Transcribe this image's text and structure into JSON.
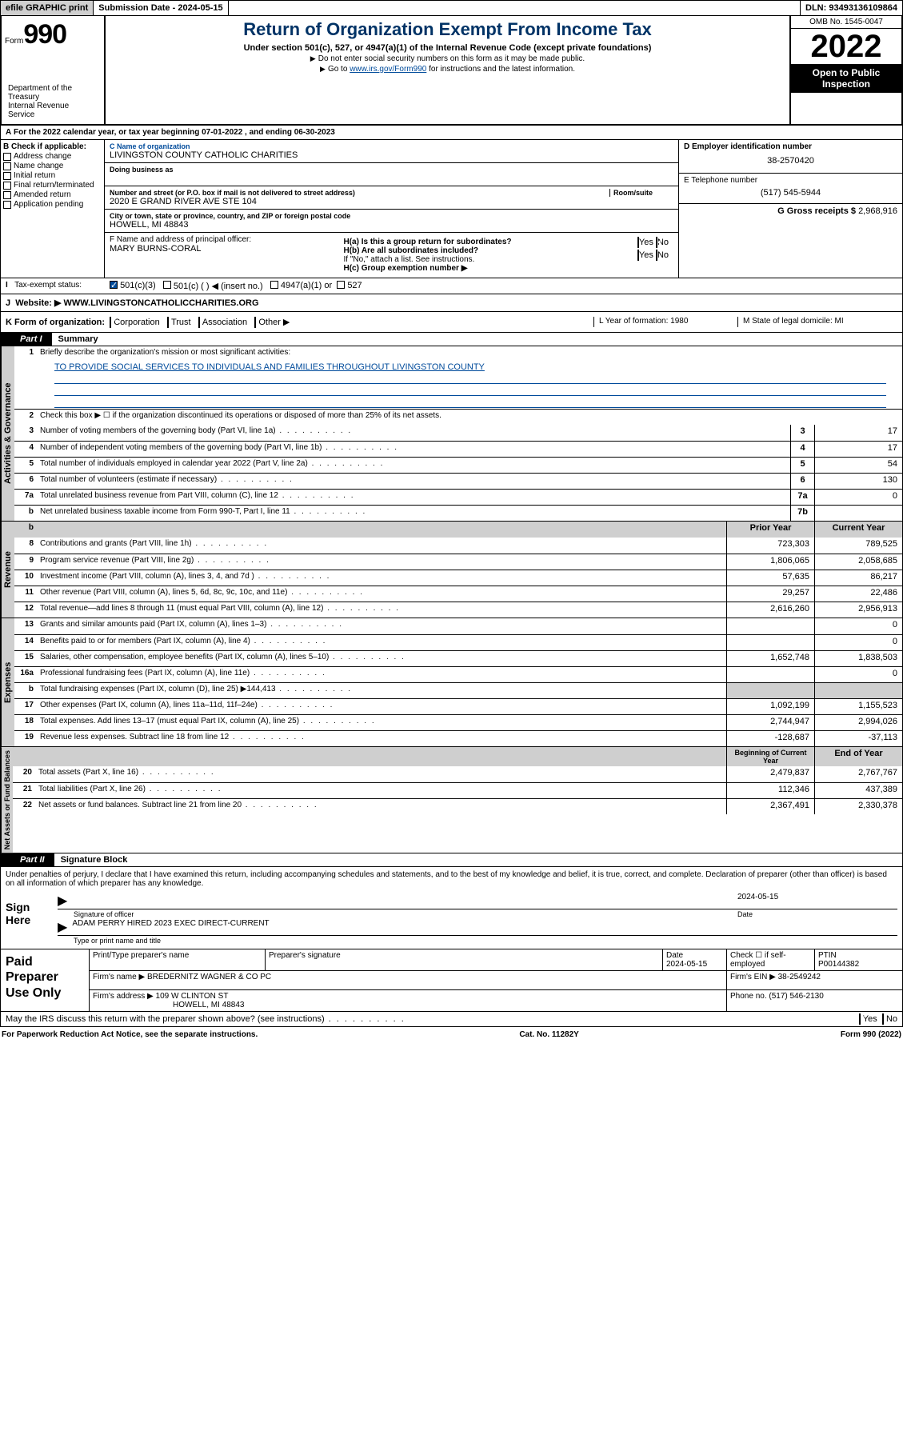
{
  "topbar": {
    "efile": "efile GRAPHIC print",
    "submission_label": "Submission Date - ",
    "submission_date": "2024-05-15",
    "dln_label": "DLN: ",
    "dln": "93493136109864"
  },
  "header": {
    "form_prefix": "Form",
    "form_number": "990",
    "title": "Return of Organization Exempt From Income Tax",
    "subtitle": "Under section 501(c), 527, or 4947(a)(1) of the Internal Revenue Code (except private foundations)",
    "instr1": "Do not enter social security numbers on this form as it may be made public.",
    "instr2_pre": "Go to ",
    "instr2_link": "www.irs.gov/Form990",
    "instr2_post": " for instructions and the latest information.",
    "omb": "OMB No. 1545-0047",
    "year": "2022",
    "open_public": "Open to Public Inspection",
    "dept": "Department of the Treasury",
    "irs": "Internal Revenue Service"
  },
  "section_a": {
    "line": "For the 2022 calendar year, or tax year beginning 07-01-2022    , and ending 06-30-2023",
    "b_label": "B Check if applicable:",
    "b_opts": [
      "Address change",
      "Name change",
      "Initial return",
      "Final return/terminated",
      "Amended return",
      "Application pending"
    ],
    "c_name_label": "C Name of organization",
    "c_name": "LIVINGSTON COUNTY CATHOLIC CHARITIES",
    "dba_label": "Doing business as",
    "street_label": "Number and street (or P.O. box if mail is not delivered to street address)",
    "room_label": "Room/suite",
    "street": "2020 E GRAND RIVER AVE STE 104",
    "city_label": "City or town, state or province, country, and ZIP or foreign postal code",
    "city": "HOWELL, MI  48843",
    "f_label": "F Name and address of principal officer:",
    "f_name": "MARY BURNS-CORAL",
    "d_label": "D Employer identification number",
    "d_ein": "38-2570420",
    "e_label": "E Telephone number",
    "e_phone": "(517) 545-5944",
    "g_label": "G Gross receipts $ ",
    "g_amount": "2,968,916",
    "ha": "H(a)  Is this a group return for subordinates?",
    "hb": "H(b)  Are all subordinates included?",
    "hb_note": "If \"No,\" attach a list. See instructions.",
    "hc": "H(c)  Group exemption number ▶",
    "yes": "Yes",
    "no": "No"
  },
  "tax_exempt": {
    "label": "Tax-exempt status:",
    "opt1": "501(c)(3)",
    "opt2": "501(c) (  ) ◀ (insert no.)",
    "opt3": "4947(a)(1) or",
    "opt4": "527"
  },
  "website": {
    "label": "Website: ▶",
    "url": "WWW.LIVINGSTONCATHOLICCHARITIES.ORG"
  },
  "k_row": {
    "label": "K Form of organization:",
    "opts": [
      "Corporation",
      "Trust",
      "Association",
      "Other ▶"
    ],
    "l": "L Year of formation: 1980",
    "m": "M State of legal domicile: MI"
  },
  "part1": {
    "label": "Part I",
    "title": "Summary"
  },
  "summary": {
    "q1": "Briefly describe the organization's mission or most significant activities:",
    "mission": "TO PROVIDE SOCIAL SERVICES TO INDIVIDUALS AND FAMILIES THROUGHOUT LIVINGSTON COUNTY",
    "q2": "Check this box ▶ ☐  if the organization discontinued its operations or disposed of more than 25% of its net assets.",
    "lines_gov": [
      {
        "n": "3",
        "t": "Number of voting members of the governing body (Part VI, line 1a)",
        "box": "3",
        "v": "17"
      },
      {
        "n": "4",
        "t": "Number of independent voting members of the governing body (Part VI, line 1b)",
        "box": "4",
        "v": "17"
      },
      {
        "n": "5",
        "t": "Total number of individuals employed in calendar year 2022 (Part V, line 2a)",
        "box": "5",
        "v": "54"
      },
      {
        "n": "6",
        "t": "Total number of volunteers (estimate if necessary)",
        "box": "6",
        "v": "130"
      },
      {
        "n": "7a",
        "t": "Total unrelated business revenue from Part VIII, column (C), line 12",
        "box": "7a",
        "v": "0"
      },
      {
        "n": "b",
        "t": "Net unrelated business taxable income from Form 990-T, Part I, line 11",
        "box": "7b",
        "v": ""
      }
    ],
    "prior_year": "Prior Year",
    "current_year": "Current Year",
    "rev": [
      {
        "n": "8",
        "t": "Contributions and grants (Part VIII, line 1h)",
        "p": "723,303",
        "c": "789,525"
      },
      {
        "n": "9",
        "t": "Program service revenue (Part VIII, line 2g)",
        "p": "1,806,065",
        "c": "2,058,685"
      },
      {
        "n": "10",
        "t": "Investment income (Part VIII, column (A), lines 3, 4, and 7d )",
        "p": "57,635",
        "c": "86,217"
      },
      {
        "n": "11",
        "t": "Other revenue (Part VIII, column (A), lines 5, 6d, 8c, 9c, 10c, and 11e)",
        "p": "29,257",
        "c": "22,486"
      },
      {
        "n": "12",
        "t": "Total revenue—add lines 8 through 11 (must equal Part VIII, column (A), line 12)",
        "p": "2,616,260",
        "c": "2,956,913"
      }
    ],
    "exp": [
      {
        "n": "13",
        "t": "Grants and similar amounts paid (Part IX, column (A), lines 1–3)",
        "p": "",
        "c": "0"
      },
      {
        "n": "14",
        "t": "Benefits paid to or for members (Part IX, column (A), line 4)",
        "p": "",
        "c": "0"
      },
      {
        "n": "15",
        "t": "Salaries, other compensation, employee benefits (Part IX, column (A), lines 5–10)",
        "p": "1,652,748",
        "c": "1,838,503"
      },
      {
        "n": "16a",
        "t": "Professional fundraising fees (Part IX, column (A), line 11e)",
        "p": "",
        "c": "0"
      },
      {
        "n": "b",
        "t": "Total fundraising expenses (Part IX, column (D), line 25) ▶144,413",
        "p": "gray",
        "c": "gray"
      },
      {
        "n": "17",
        "t": "Other expenses (Part IX, column (A), lines 11a–11d, 11f–24e)",
        "p": "1,092,199",
        "c": "1,155,523"
      },
      {
        "n": "18",
        "t": "Total expenses. Add lines 13–17 (must equal Part IX, column (A), line 25)",
        "p": "2,744,947",
        "c": "2,994,026"
      },
      {
        "n": "19",
        "t": "Revenue less expenses. Subtract line 18 from line 12",
        "p": "-128,687",
        "c": "-37,113"
      }
    ],
    "begin_year": "Beginning of Current Year",
    "end_year": "End of Year",
    "net": [
      {
        "n": "20",
        "t": "Total assets (Part X, line 16)",
        "p": "2,479,837",
        "c": "2,767,767"
      },
      {
        "n": "21",
        "t": "Total liabilities (Part X, line 26)",
        "p": "112,346",
        "c": "437,389"
      },
      {
        "n": "22",
        "t": "Net assets or fund balances. Subtract line 21 from line 20",
        "p": "2,367,491",
        "c": "2,330,378"
      }
    ],
    "vlabels": {
      "gov": "Activities & Governance",
      "rev": "Revenue",
      "exp": "Expenses",
      "net": "Net Assets or Fund Balances"
    }
  },
  "part2": {
    "label": "Part II",
    "title": "Signature Block"
  },
  "sig": {
    "perjury": "Under penalties of perjury, I declare that I have examined this return, including accompanying schedules and statements, and to the best of my knowledge and belief, it is true, correct, and complete. Declaration of preparer (other than officer) is based on all information of which preparer has any knowledge.",
    "sign_here": "Sign Here",
    "date": "2024-05-15",
    "sig_officer": "Signature of officer",
    "date_label": "Date",
    "name_title": "ADAM PERRY HIRED 2023  EXEC DIRECT-CURRENT",
    "name_caption": "Type or print name and title"
  },
  "paid": {
    "label": "Paid Preparer Use Only",
    "h_name": "Print/Type preparer's name",
    "h_sig": "Preparer's signature",
    "h_date": "Date",
    "date": "2024-05-15",
    "check_label": "Check ☐ if self-employed",
    "ptin_label": "PTIN",
    "ptin": "P00144382",
    "firm_name_label": "Firm's name      ▶",
    "firm_name": "BREDERNITZ WAGNER & CO PC",
    "firm_ein_label": "Firm's EIN ▶",
    "firm_ein": "38-2549242",
    "firm_addr_label": "Firm's address ▶",
    "firm_addr1": "109 W CLINTON ST",
    "firm_addr2": "HOWELL, MI  48843",
    "phone_label": "Phone no. ",
    "phone": "(517) 546-2130"
  },
  "footer": {
    "may": "May the IRS discuss this return with the preparer shown above? (see instructions)",
    "yes": "Yes",
    "no": "No",
    "paperwork": "For Paperwork Reduction Act Notice, see the separate instructions.",
    "cat": "Cat. No. 11282Y",
    "form": "Form 990 (2022)"
  }
}
